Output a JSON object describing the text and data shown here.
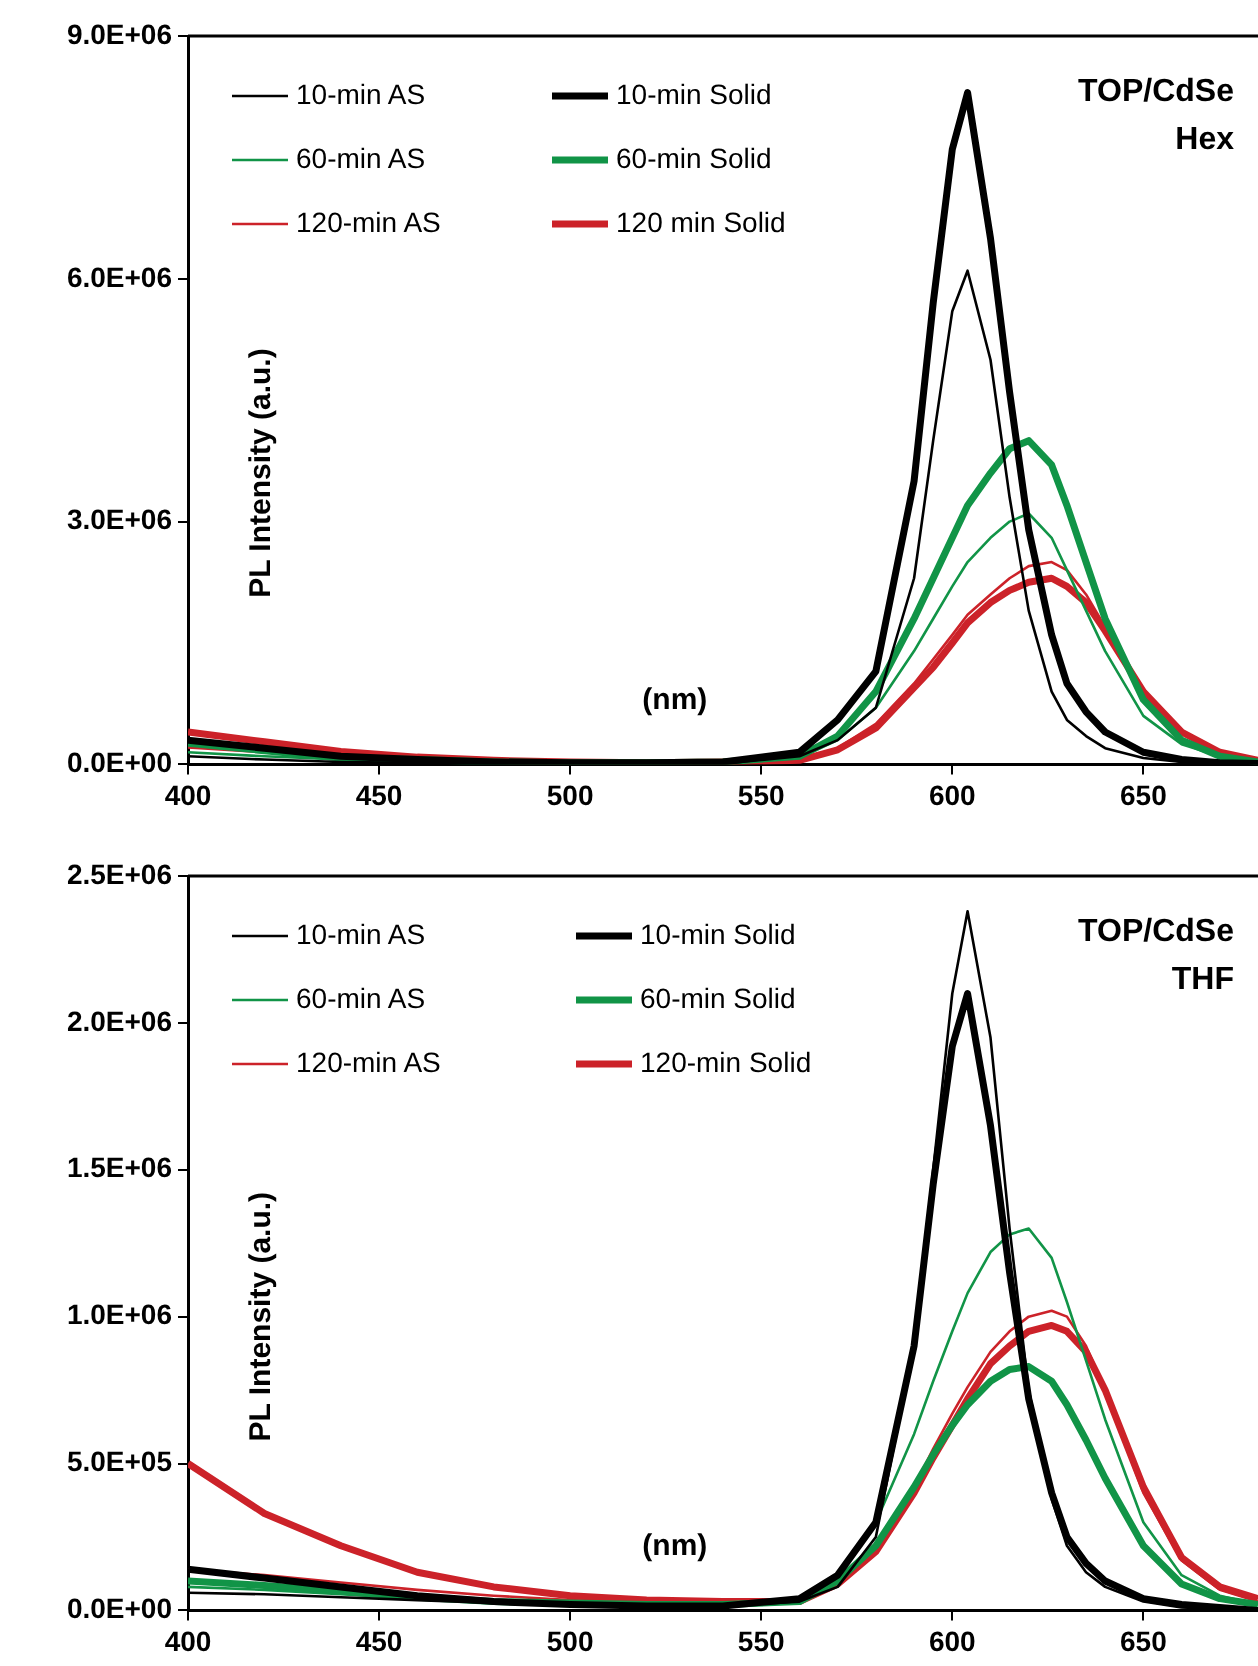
{
  "chart_data": [
    {
      "type": "line",
      "title": "TOP/CdSe\nHex",
      "xlabel": "(nm)",
      "ylabel": "PL Intensity (a.u.)",
      "legend": "top left",
      "line_style": "solid",
      "grid": false,
      "x": [
        400,
        420,
        440,
        460,
        480,
        500,
        520,
        540,
        560,
        570,
        580,
        590,
        595,
        600,
        604,
        610,
        615,
        620,
        626,
        630,
        635,
        640,
        650,
        660,
        670,
        680
      ],
      "xlim": [
        400,
        680
      ],
      "xticks": [
        400,
        450,
        500,
        550,
        600,
        650
      ],
      "ylim": [
        0,
        9000000
      ],
      "yticks": [
        {
          "value": 0,
          "label": "0.0E+00"
        },
        {
          "value": 3000000,
          "label": "3.0E+06"
        },
        {
          "value": 6000000,
          "label": "6.0E+06"
        },
        {
          "value": 9000000,
          "label": "9.0E+06"
        }
      ],
      "series": [
        {
          "name": "10-min AS",
          "color": "#000000",
          "values": [
            100000,
            60000,
            30000,
            20000,
            10000,
            10000,
            10000,
            10000,
            100000,
            300000,
            700000,
            2300000,
            4000000,
            5600000,
            6100000,
            5000000,
            3300000,
            1900000,
            900000,
            550000,
            350000,
            200000,
            80000,
            30000,
            10000,
            0
          ]
        },
        {
          "name": "10-min Solid",
          "color": "#000000",
          "values": [
            300000,
            200000,
            100000,
            60000,
            30000,
            20000,
            20000,
            30000,
            150000,
            550000,
            1150000,
            3500000,
            5700000,
            7600000,
            8300000,
            6500000,
            4600000,
            2900000,
            1600000,
            1000000,
            650000,
            400000,
            150000,
            60000,
            20000,
            10000
          ]
        },
        {
          "name": "60-min AS",
          "color": "#119447",
          "values": [
            150000,
            100000,
            60000,
            30000,
            20000,
            10000,
            10000,
            20000,
            80000,
            300000,
            700000,
            1400000,
            1800000,
            2200000,
            2500000,
            2800000,
            3000000,
            3100000,
            2800000,
            2400000,
            1900000,
            1400000,
            600000,
            250000,
            100000,
            30000
          ]
        },
        {
          "name": "60-min Solid",
          "color": "#119447",
          "values": [
            260000,
            170000,
            80000,
            60000,
            30000,
            20000,
            20000,
            30000,
            100000,
            350000,
            900000,
            1800000,
            2300000,
            2800000,
            3200000,
            3600000,
            3900000,
            4000000,
            3700000,
            3200000,
            2500000,
            1800000,
            800000,
            300000,
            100000,
            30000
          ]
        },
        {
          "name": "120-min AS",
          "color": "#cc2229",
          "values": [
            210000,
            150000,
            95000,
            30000,
            20000,
            10000,
            10000,
            20000,
            50000,
            200000,
            500000,
            1000000,
            1300000,
            1600000,
            1850000,
            2100000,
            2300000,
            2450000,
            2500000,
            2400000,
            2100000,
            1700000,
            900000,
            400000,
            150000,
            50000
          ]
        },
        {
          "name": "120 min Solid",
          "color": "#cc2229",
          "values": [
            400000,
            280000,
            160000,
            90000,
            50000,
            30000,
            20000,
            30000,
            50000,
            180000,
            450000,
            950000,
            1200000,
            1500000,
            1750000,
            2000000,
            2150000,
            2250000,
            2300000,
            2200000,
            2000000,
            1650000,
            900000,
            400000,
            150000,
            50000
          ]
        }
      ]
    },
    {
      "type": "line",
      "title": "TOP/CdSe\nTHF",
      "xlabel": "(nm)",
      "ylabel": "PL Intensity (a.u.)",
      "legend": "top left",
      "line_style": "solid",
      "grid": false,
      "x": [
        400,
        420,
        440,
        460,
        480,
        500,
        520,
        540,
        560,
        570,
        580,
        590,
        595,
        600,
        604,
        610,
        615,
        620,
        626,
        630,
        635,
        640,
        650,
        660,
        670,
        680
      ],
      "xlim": [
        400,
        680
      ],
      "xticks": [
        400,
        450,
        500,
        550,
        600,
        650
      ],
      "ylim": [
        0,
        2500000
      ],
      "yticks": [
        {
          "value": 0,
          "label": "0.0E+00"
        },
        {
          "value": 500000,
          "label": "5.0E+05"
        },
        {
          "value": 1000000,
          "label": "1.0E+06"
        },
        {
          "value": 1500000,
          "label": "1.5E+06"
        },
        {
          "value": 2000000,
          "label": "2.0E+06"
        },
        {
          "value": 2500000,
          "label": "2.5E+06"
        }
      ],
      "series": [
        {
          "name": "10-min AS",
          "color": "#000000",
          "values": [
            60000,
            55000,
            45000,
            35000,
            25000,
            20000,
            15000,
            15000,
            30000,
            80000,
            250000,
            900000,
            1500000,
            2100000,
            2380000,
            1950000,
            1300000,
            750000,
            380000,
            220000,
            130000,
            80000,
            30000,
            10000,
            5000,
            0
          ]
        },
        {
          "name": "10-min Solid",
          "color": "#000000",
          "values": [
            140000,
            110000,
            80000,
            50000,
            30000,
            20000,
            15000,
            15000,
            40000,
            120000,
            300000,
            900000,
            1450000,
            1920000,
            2100000,
            1650000,
            1150000,
            720000,
            400000,
            250000,
            160000,
            100000,
            40000,
            20000,
            10000,
            0
          ]
        },
        {
          "name": "60-min AS",
          "color": "#119447",
          "values": [
            80000,
            70000,
            55000,
            40000,
            30000,
            25000,
            20000,
            20000,
            40000,
            120000,
            300000,
            600000,
            780000,
            950000,
            1080000,
            1220000,
            1280000,
            1300000,
            1200000,
            1050000,
            850000,
            650000,
            300000,
            120000,
            50000,
            20000
          ]
        },
        {
          "name": "60-min Solid",
          "color": "#119447",
          "values": [
            100000,
            85000,
            65000,
            45000,
            30000,
            25000,
            20000,
            20000,
            30000,
            100000,
            220000,
            420000,
            530000,
            630000,
            700000,
            780000,
            820000,
            830000,
            780000,
            700000,
            580000,
            450000,
            220000,
            90000,
            40000,
            20000
          ]
        },
        {
          "name": "120-min AS",
          "color": "#cc2229",
          "values": [
            140000,
            120000,
            95000,
            70000,
            50000,
            35000,
            25000,
            25000,
            30000,
            100000,
            220000,
            420000,
            550000,
            670000,
            760000,
            880000,
            950000,
            1000000,
            1020000,
            1000000,
            900000,
            750000,
            400000,
            170000,
            70000,
            30000
          ]
        },
        {
          "name": "120-min Solid",
          "color": "#cc2229",
          "values": [
            500000,
            330000,
            220000,
            130000,
            80000,
            50000,
            35000,
            30000,
            30000,
            90000,
            200000,
            400000,
            520000,
            630000,
            720000,
            840000,
            900000,
            950000,
            970000,
            950000,
            880000,
            750000,
            420000,
            180000,
            80000,
            40000
          ]
        }
      ]
    }
  ]
}
